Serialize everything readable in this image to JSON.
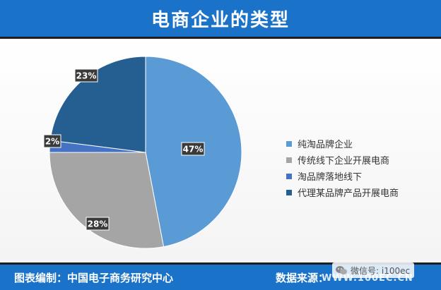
{
  "header": {
    "title": "电商企业的类型"
  },
  "footer": {
    "compiler": "图表编制：中国电子商务研究中心",
    "source_label": "数据来源：",
    "website": "WWW.100EC.CN"
  },
  "watermark": {
    "text": "微信号: i100ec",
    "icon": "wechat-icon"
  },
  "colors": {
    "header_bg": "#1a73c8",
    "label_bg": "#3a3a3a"
  },
  "chart_data": {
    "type": "pie",
    "title": "电商企业的类型",
    "legend_position": "right",
    "series": [
      {
        "name": "纯淘品牌企业",
        "value": 47,
        "label": "47%",
        "color": "#5b9bd5"
      },
      {
        "name": "传统线下企业开展电商",
        "value": 28,
        "label": "28%",
        "color": "#a5a5a5"
      },
      {
        "name": "淘品牌落地线下",
        "value": 2,
        "label": "2%",
        "color": "#4472c4"
      },
      {
        "name": "代理某品牌产品开展电商",
        "value": 23,
        "label": "23%",
        "color": "#255e91"
      }
    ]
  }
}
